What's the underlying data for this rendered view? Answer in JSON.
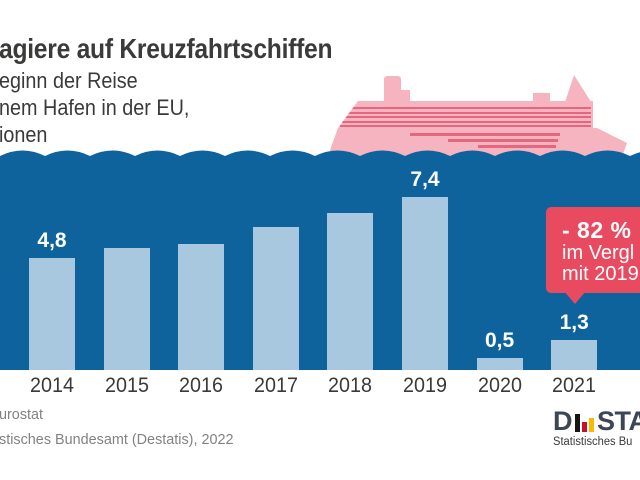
{
  "header": {
    "title": "agiere auf Kreuzfahrtschiffen",
    "subtitle_lines": [
      "eginn der Reise",
      "nem Hafen in der EU,",
      "ionen"
    ]
  },
  "chart_data": {
    "type": "bar",
    "categories": [
      "2014",
      "2015",
      "2016",
      "2017",
      "2018",
      "2019",
      "2020",
      "2021"
    ],
    "values": [
      4.8,
      5.2,
      5.4,
      6.1,
      6.7,
      7.4,
      0.5,
      1.3
    ],
    "bar_labels": [
      "4,8",
      null,
      null,
      null,
      null,
      "7,4",
      "0,5",
      "1,3"
    ],
    "ylim": [
      0,
      9
    ],
    "grid": false,
    "legend": "none",
    "annotation": {
      "headline": "- 82 %",
      "line2": "im Vergl",
      "line3": "mit 2019"
    }
  },
  "callout": {
    "headline": "- 82 %",
    "line2": "im Vergl",
    "line3": "mit 2019"
  },
  "footer": {
    "source_line1": "urostat",
    "source_line2": "stisches Bundesamt (Destatis), 2022"
  },
  "logo": {
    "wordmark_prefix": "D",
    "wordmark_suffix": "STA",
    "caption": "Statistisches Bu",
    "bar_colors": [
      "#161615",
      "#c8102e",
      "#f8bb00"
    ]
  },
  "illustrations": {
    "ship": "cruise-ship",
    "wave": "sea-wave"
  },
  "colors": {
    "sea": "#0f639d",
    "bar_fill": "#a8c8df",
    "callout_red": "#e84a5f",
    "ship_body": "#f6b3c0",
    "ship_stripe": "#e5677e",
    "text_dark": "#3a3a39",
    "text_gray": "#828282",
    "logo_text": "#3d4654"
  }
}
